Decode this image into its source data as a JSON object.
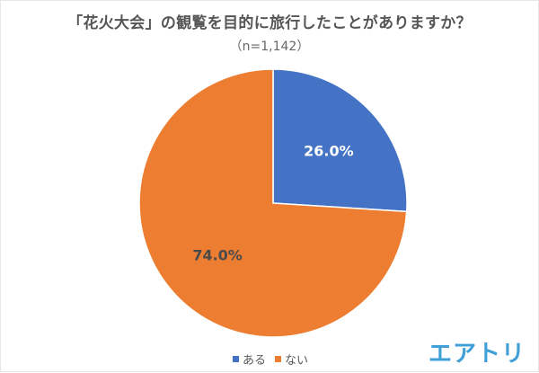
{
  "chart_data": {
    "type": "pie",
    "title": "「花火大会」の観覧を目的に旅行したことがありますか？",
    "subtitle": "（n=1,142）",
    "categories": [
      "ある",
      "ない"
    ],
    "values": [
      26.0,
      74.0
    ],
    "labels": [
      "26.0%",
      "74.0%"
    ],
    "colors": [
      "#4472c4",
      "#ed7d31"
    ],
    "start_angle_deg": 0,
    "direction": "clockwise",
    "legend_position": "bottom"
  },
  "legend": {
    "items": [
      {
        "label": "ある",
        "color": "#4472c4"
      },
      {
        "label": "ない",
        "color": "#ed7d31"
      }
    ]
  },
  "brand": {
    "logo_text": "エアトリ",
    "color": "#3f9fd6"
  }
}
